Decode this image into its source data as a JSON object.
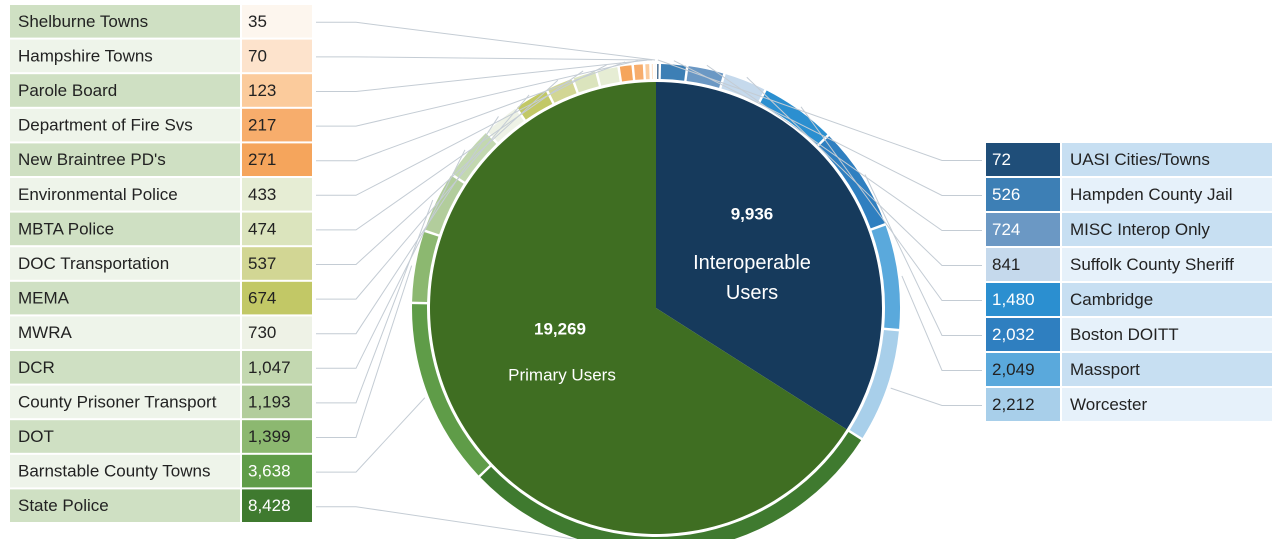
{
  "chart_data": {
    "type": "pie",
    "categories": [
      "Primary Users",
      "Interoperable Users"
    ],
    "values": [
      19269,
      9936
    ],
    "value_labels": [
      "19,269",
      "9,936"
    ],
    "colors": [
      "#3f6e22",
      "#163a5c"
    ],
    "groups": [
      {
        "categories": [
          "Shelburne Towns",
          "Hampshire Towns",
          "Parole Board",
          "Department of Fire Svs",
          "New Braintree PD's",
          "Environmental Police",
          "MBTA Police",
          "DOC Transportation",
          "MEMA",
          "MWRA",
          "DCR",
          "County Prisoner Transport",
          "DOT",
          "Barnstable County Towns",
          "State Police"
        ],
        "values": [
          35,
          70,
          123,
          217,
          271,
          433,
          474,
          537,
          674,
          730,
          1047,
          1193,
          1399,
          3638,
          8428
        ],
        "value_labels": [
          "35",
          "70",
          "123",
          "217",
          "271",
          "433",
          "474",
          "537",
          "674",
          "730",
          "1,047",
          "1,193",
          "1,399",
          "3,638",
          "8,428"
        ],
        "colors": [
          "#fdf6ee",
          "#fde3cc",
          "#fbcb9c",
          "#f7ad6c",
          "#f5a55c",
          "#e6edd4",
          "#dbe4bd",
          "#d2d694",
          "#c2c866",
          "#eef2e6",
          "#c3d8b0",
          "#b2cd9c",
          "#8cb870",
          "#5f9c48",
          "#3f7a2f"
        ]
      },
      {
        "categories": [
          "UASI Cities/Towns",
          "Hampden County Jail",
          "MISC Interop Only",
          "Suffolk County Sheriff",
          "Cambridge",
          "Boston DOITT",
          "Massport",
          "Worcester"
        ],
        "values": [
          72,
          526,
          724,
          841,
          1480,
          2032,
          2049,
          2212
        ],
        "value_labels": [
          "72",
          "526",
          "724",
          "841",
          "1,480",
          "2,032",
          "2,049",
          "2,212"
        ],
        "colors": [
          "#1f4e79",
          "#3d7fb5",
          "#6b98c4",
          "#c5d9ec",
          "#2b8fd0",
          "#2f7fc0",
          "#5aa9dc",
          "#a8cfea"
        ]
      }
    ]
  }
}
